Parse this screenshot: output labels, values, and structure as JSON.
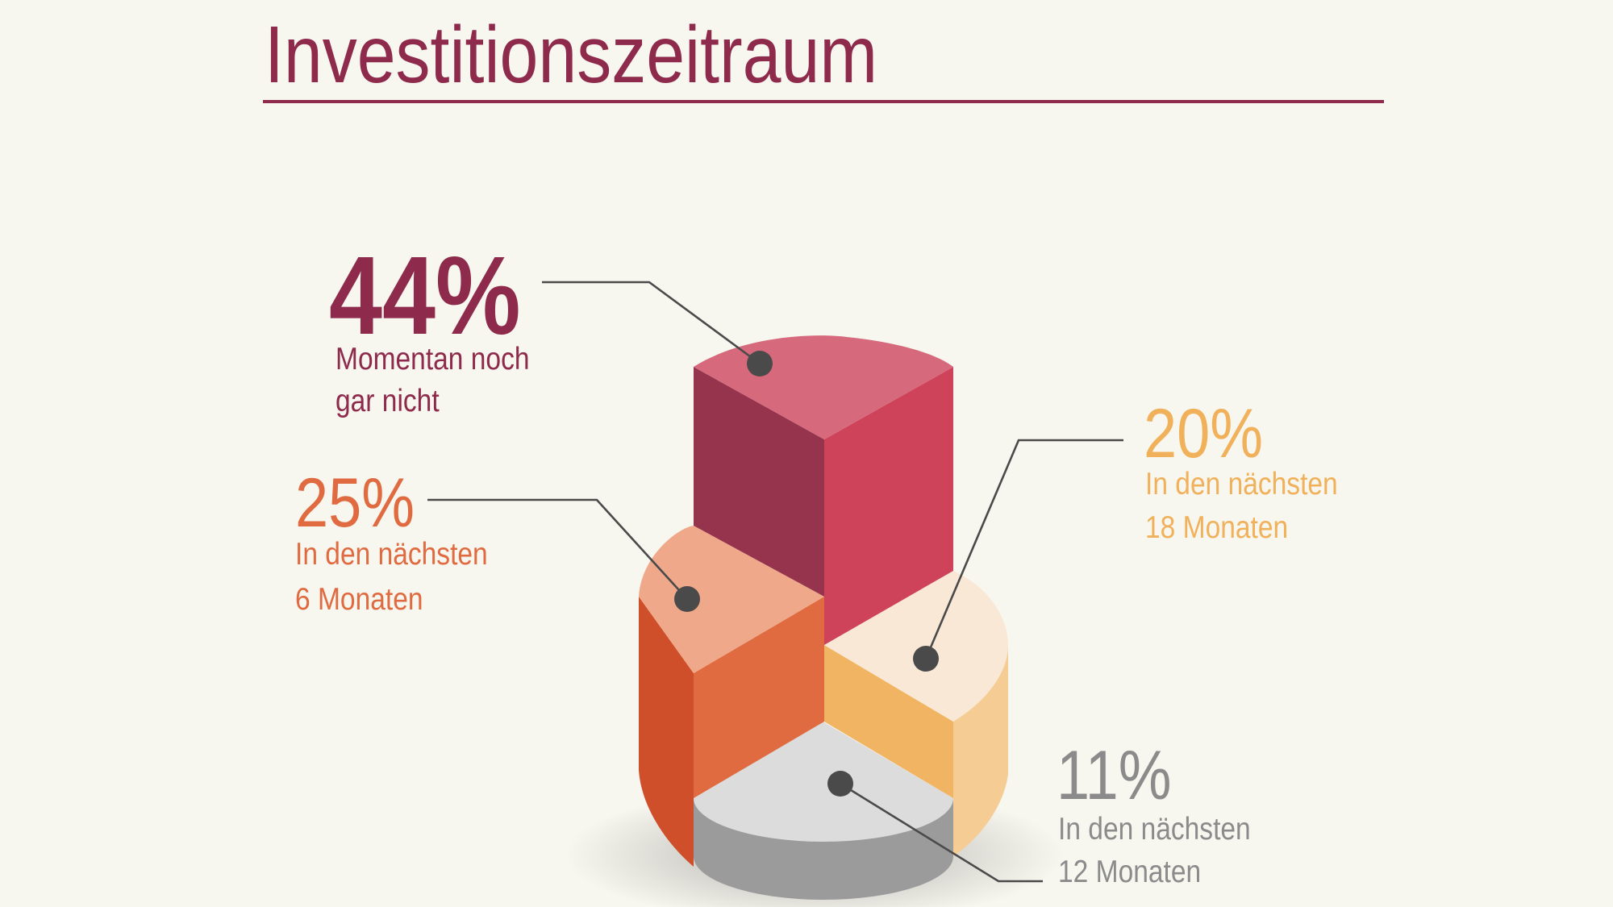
{
  "title": "Investitionszeitraum",
  "colors": {
    "title": "#8e2a4c",
    "background": "#f7f6ef",
    "leader": "#4a4a4a"
  },
  "chart_data": {
    "type": "pie",
    "style": "3d-isometric-stepped",
    "title": "Investitionszeitraum",
    "slices": [
      {
        "value_label": "44%",
        "value": 44,
        "label_line1": "Momentan noch",
        "label_line2": "gar nicht",
        "color": "#8e2a4c",
        "colors": {
          "top": "#d66a7c",
          "left": "#96344e",
          "right": "#cf435a"
        }
      },
      {
        "value_label": "25%",
        "value": 25,
        "label_line1": "In den nächsten",
        "label_line2": "6 Monaten",
        "color": "#e06b40",
        "colors": {
          "top": "#efa98a",
          "side_front": "#e06b40",
          "side_back": "#cf4f2a"
        }
      },
      {
        "value_label": "20%",
        "value": 20,
        "label_line1": "In den nächsten",
        "label_line2": "18 Monaten",
        "color": "#f0b15a",
        "colors": {
          "top": "#fae8d6",
          "side_front": "#f0b463",
          "side_back": "#f6cc95"
        }
      },
      {
        "value_label": "11%",
        "value": 11,
        "label_line1": "In den nächsten",
        "label_line2": "12 Monaten",
        "color": "#8b8b8b",
        "colors": {
          "top": "#dcdcdc",
          "side": "#9b9b9b"
        }
      }
    ]
  }
}
